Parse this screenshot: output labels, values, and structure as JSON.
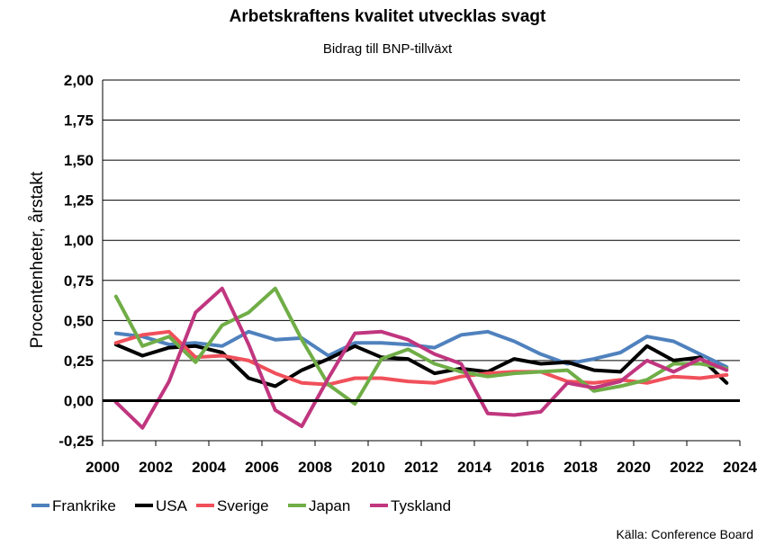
{
  "title": "Arbetskraftens kvalitet utvecklas svagt",
  "subtitle": "Bidrag till BNP-tillväxt",
  "source": "Källa: Conference Board",
  "chart_data": {
    "type": "line",
    "ylabel": "Procentenheter, årstakt",
    "ylim": [
      -0.25,
      2.0
    ],
    "xlim": [
      2000,
      2024
    ],
    "grid": true,
    "legend_position": "bottom-left",
    "y_ticks": [
      "-0,25",
      "0,00",
      "0,25",
      "0,50",
      "0,75",
      "1,00",
      "1,25",
      "1,50",
      "1,75",
      "2,00"
    ],
    "x_ticks": [
      "2000",
      "2002",
      "2004",
      "2006",
      "2008",
      "2010",
      "2012",
      "2014",
      "2016",
      "2018",
      "2020",
      "2022",
      "2024"
    ],
    "x": [
      2000.5,
      2001.5,
      2002.5,
      2003.5,
      2004.5,
      2005.5,
      2006.5,
      2007.5,
      2008.5,
      2009.5,
      2010.5,
      2011.5,
      2012.5,
      2013.5,
      2014.5,
      2015.5,
      2016.5,
      2017.5,
      2018.5,
      2019.5,
      2020.5,
      2021.5,
      2022.5,
      2023.5
    ],
    "series": [
      {
        "name": "Frankrike",
        "color": "#4F81BD",
        "values": [
          0.42,
          0.4,
          0.35,
          0.36,
          0.34,
          0.43,
          0.38,
          0.39,
          0.28,
          0.36,
          0.36,
          0.35,
          0.33,
          0.41,
          0.43,
          0.37,
          0.29,
          0.23,
          0.26,
          0.3,
          0.4,
          0.37,
          0.29,
          0.21
        ]
      },
      {
        "name": "USA",
        "color": "#000000",
        "values": [
          0.35,
          0.28,
          0.33,
          0.34,
          0.3,
          0.14,
          0.09,
          0.19,
          0.26,
          0.34,
          0.27,
          0.26,
          0.17,
          0.2,
          0.18,
          0.26,
          0.23,
          0.24,
          0.19,
          0.18,
          0.34,
          0.25,
          0.27,
          0.11
        ]
      },
      {
        "name": "Sverige",
        "color": "#F0505A",
        "values": [
          0.36,
          0.41,
          0.43,
          0.27,
          0.28,
          0.25,
          0.17,
          0.11,
          0.1,
          0.14,
          0.14,
          0.12,
          0.11,
          0.15,
          0.17,
          0.18,
          0.18,
          0.12,
          0.11,
          0.13,
          0.11,
          0.15,
          0.14,
          0.16
        ]
      },
      {
        "name": "Japan",
        "color": "#70AD47",
        "values": [
          0.65,
          0.34,
          0.4,
          0.24,
          0.47,
          0.55,
          0.7,
          0.38,
          0.1,
          -0.02,
          0.26,
          0.32,
          0.23,
          0.18,
          0.15,
          0.17,
          0.18,
          0.19,
          0.06,
          0.09,
          0.13,
          0.23,
          0.23,
          0.2
        ]
      },
      {
        "name": "Tyskland",
        "color": "#C0367F",
        "values": [
          -0.01,
          -0.17,
          0.12,
          0.55,
          0.7,
          0.35,
          -0.06,
          -0.16,
          0.14,
          0.42,
          0.43,
          0.38,
          0.29,
          0.23,
          -0.08,
          -0.09,
          -0.07,
          0.11,
          0.08,
          0.12,
          0.25,
          0.18,
          0.26,
          0.19
        ]
      }
    ]
  }
}
